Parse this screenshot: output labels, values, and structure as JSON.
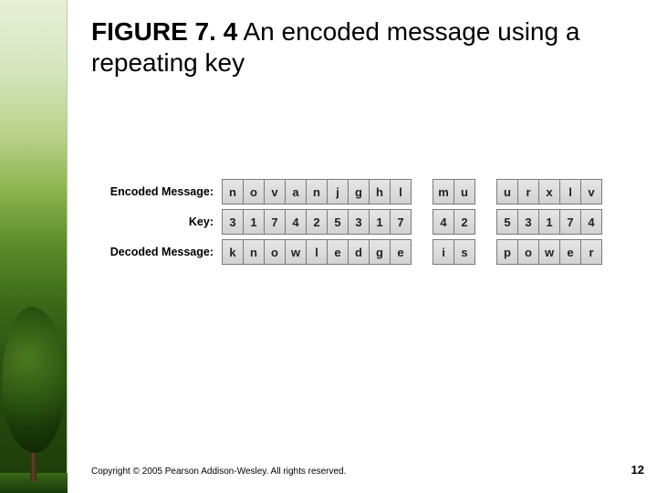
{
  "sidebar": {
    "gradient_top": "#e8f0d9",
    "gradient_bottom": "#1e3a0a",
    "tree_foliage": "#2e5812",
    "tree_trunk": "#5a4524"
  },
  "title": {
    "figure_label": "FIGURE 7. 4",
    "text": " An encoded message using a repeating key"
  },
  "table": {
    "cell_bg_top": "#e6e6e6",
    "cell_bg_bottom": "#d2d2d2",
    "border_color": "#7a7a7a",
    "rows": [
      {
        "label": "Encoded Message:",
        "cells": [
          "n",
          "o",
          "v",
          "a",
          "n",
          "j",
          "g",
          "h",
          "l",
          "",
          "m",
          "u",
          "",
          "u",
          "r",
          "x",
          "l",
          "v"
        ]
      },
      {
        "label": "Key:",
        "cells": [
          "3",
          "1",
          "7",
          "4",
          "2",
          "5",
          "3",
          "1",
          "7",
          "",
          "4",
          "2",
          "",
          "5",
          "3",
          "1",
          "7",
          "4"
        ]
      },
      {
        "label": "Decoded Message:",
        "cells": [
          "k",
          "n",
          "o",
          "w",
          "l",
          "e",
          "d",
          "g",
          "e",
          "",
          "i",
          "s",
          "",
          "p",
          "o",
          "w",
          "e",
          "r"
        ]
      }
    ]
  },
  "footer": {
    "copyright": "Copyright © 2005 Pearson Addison-Wesley. All rights reserved.",
    "page_number": "12"
  }
}
